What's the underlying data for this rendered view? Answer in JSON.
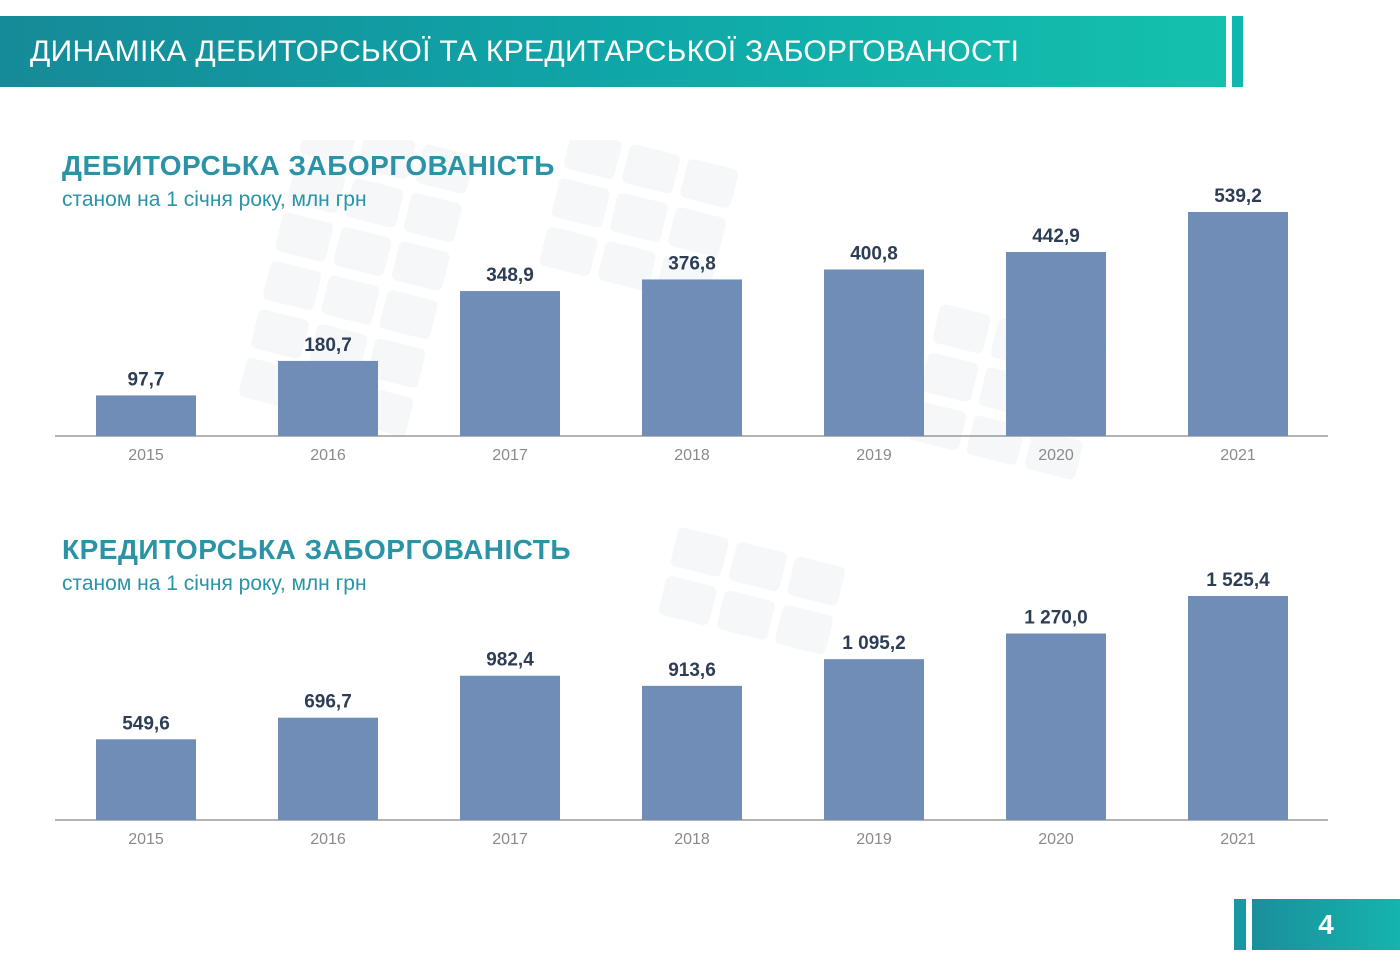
{
  "header": {
    "title": "ДИНАМІКА ДЕБИТОРСЬКОЇ ТА КРЕДИТАРСЬКОЇ ЗАБОРГОВАНОСТІ"
  },
  "sections": [
    {
      "title": "ДЕБИТОРСЬКА ЗАБОРГОВАНІСТЬ",
      "subtitle": "станом на 1 січня року, млн грн"
    },
    {
      "title": "КРЕДИТОРСЬКА ЗАБОРГОВАНІСТЬ",
      "subtitle": "станом на 1 січня року, млн грн"
    }
  ],
  "page_number": "4",
  "colors": {
    "bar": "#6f8db6",
    "accent": "#2a93a6",
    "header": "#0fa6a8"
  },
  "chart_data": [
    {
      "type": "bar",
      "title": "ДЕБИТОРСЬКА ЗАБОРГОВАНІСТЬ",
      "subtitle": "станом на 1 січня року, млн грн",
      "categories": [
        "2015",
        "2016",
        "2017",
        "2018",
        "2019",
        "2020",
        "2021"
      ],
      "values": [
        97.7,
        180.7,
        348.9,
        376.8,
        400.8,
        442.9,
        539.2
      ],
      "value_labels": [
        "97,7",
        "180,7",
        "348,9",
        "376,8",
        "400,8",
        "442,9",
        "539,2"
      ],
      "ylim": [
        0,
        539.2
      ],
      "grid": false,
      "legend": "none"
    },
    {
      "type": "bar",
      "title": "КРЕДИТОРСЬКА ЗАБОРГОВАНІСТЬ",
      "subtitle": "станом на 1 січня року, млн грн",
      "categories": [
        "2015",
        "2016",
        "2017",
        "2018",
        "2019",
        "2020",
        "2021"
      ],
      "values": [
        549.6,
        696.7,
        982.4,
        913.6,
        1095.2,
        1270.0,
        1525.4
      ],
      "value_labels": [
        "549,6",
        "696,7",
        "982,4",
        "913,6",
        "1 095,2",
        "1 270,0",
        "1 525,4"
      ],
      "ylim": [
        0,
        1525.4
      ],
      "grid": false,
      "legend": "none"
    }
  ]
}
